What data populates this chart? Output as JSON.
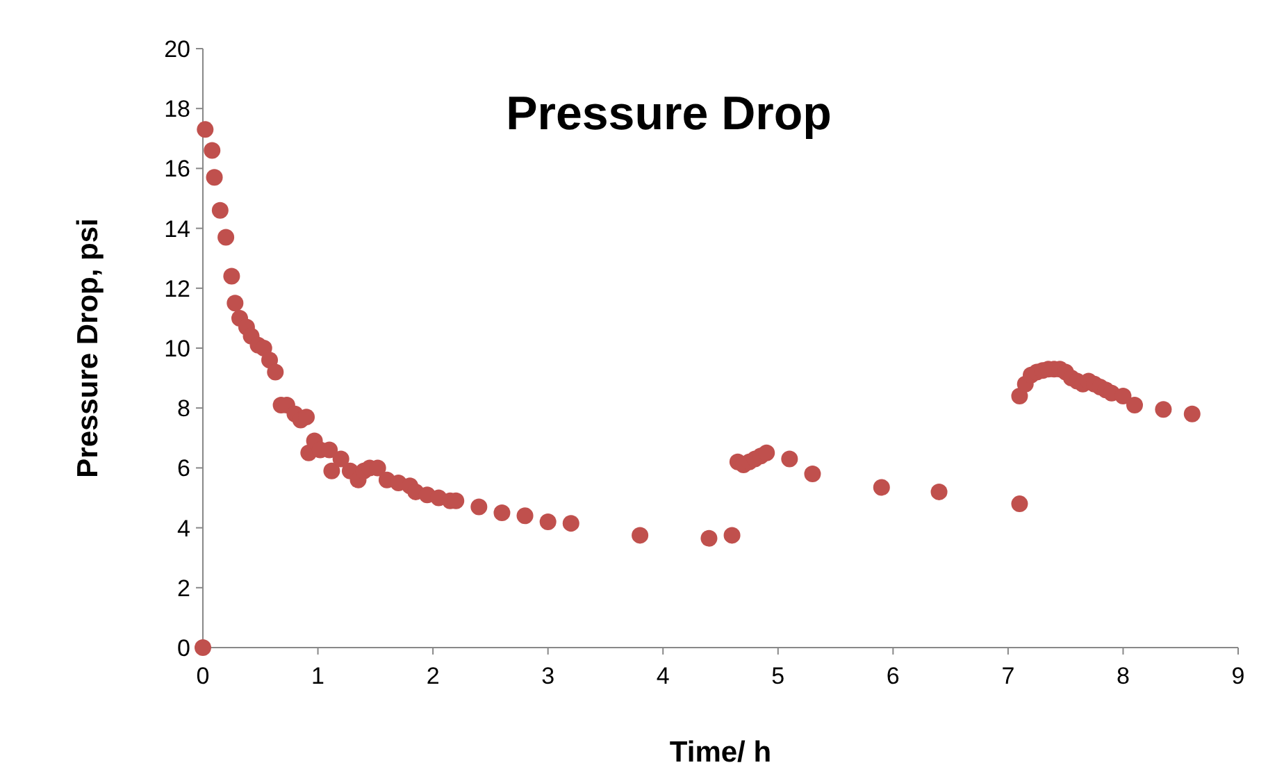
{
  "chart_data": {
    "type": "scatter",
    "title": "Pressure Drop",
    "xlabel": "Time/ h",
    "ylabel": "Pressure Drop, psi",
    "xlim": [
      0,
      9
    ],
    "xticks": [
      0,
      1,
      2,
      3,
      4,
      5,
      6,
      7,
      8,
      9
    ],
    "ylim": [
      0,
      20
    ],
    "yticks": [
      0,
      2,
      4,
      6,
      8,
      10,
      12,
      14,
      16,
      18,
      20
    ],
    "grid": false,
    "marker": "circle",
    "series": [
      {
        "color": "#c0504d",
        "x": [
          0,
          0.02,
          0.08,
          0.1,
          0.15,
          0.2,
          0.25,
          0.28,
          0.32,
          0.38,
          0.42,
          0.48,
          0.53,
          0.58,
          0.63,
          0.68,
          0.73,
          0.8,
          0.85,
          0.9,
          0.92,
          0.97,
          1.02,
          1.1,
          1.12,
          1.2,
          1.28,
          1.35,
          1.4,
          1.45,
          1.52,
          1.6,
          1.7,
          1.8,
          1.85,
          1.95,
          2.05,
          2.15,
          2.2,
          2.4,
          2.6,
          2.8,
          3.0,
          3.2,
          3.8,
          4.4,
          4.6,
          4.65,
          4.7,
          4.75,
          4.8,
          4.85,
          4.9,
          5.1,
          5.3,
          5.9,
          6.4,
          7.1,
          7.1,
          7.15,
          7.2,
          7.25,
          7.3,
          7.35,
          7.4,
          7.45,
          7.5,
          7.55,
          7.6,
          7.65,
          7.7,
          7.75,
          7.8,
          7.85,
          7.9,
          8.0,
          8.1,
          8.35,
          8.6
        ],
        "values": [
          0,
          17.3,
          16.6,
          15.7,
          14.6,
          13.7,
          12.4,
          11.5,
          11.0,
          10.7,
          10.4,
          10.1,
          10.0,
          9.6,
          9.2,
          8.1,
          8.1,
          7.8,
          7.6,
          7.7,
          6.5,
          6.9,
          6.6,
          6.6,
          5.9,
          6.3,
          5.9,
          5.6,
          5.9,
          6.0,
          6.0,
          5.6,
          5.5,
          5.4,
          5.2,
          5.1,
          5.0,
          4.9,
          4.9,
          4.7,
          4.5,
          4.4,
          4.2,
          4.15,
          3.75,
          3.65,
          3.75,
          6.2,
          6.1,
          6.2,
          6.3,
          6.4,
          6.5,
          6.3,
          5.8,
          5.35,
          5.2,
          4.8,
          8.4,
          8.8,
          9.1,
          9.2,
          9.25,
          9.3,
          9.3,
          9.3,
          9.2,
          9.0,
          8.9,
          8.8,
          8.9,
          8.8,
          8.7,
          8.6,
          8.5,
          8.4,
          8.1,
          7.95,
          7.8
        ]
      }
    ]
  }
}
